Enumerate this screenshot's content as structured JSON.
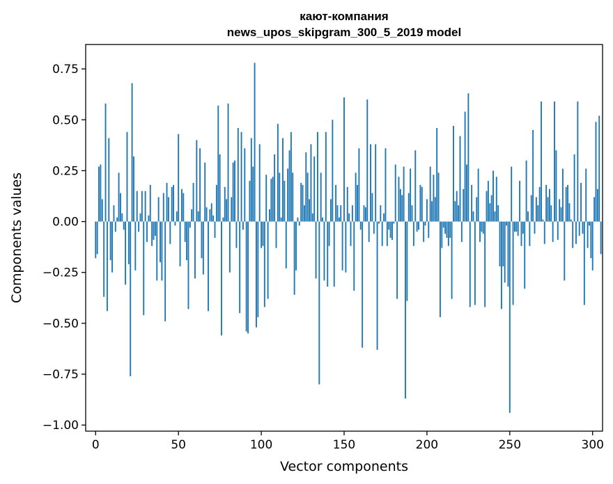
{
  "chart_data": {
    "type": "bar",
    "title": "кают-компания",
    "subtitle": "news_upos_skipgram_300_5_2019 model",
    "xlabel": "Vector components",
    "ylabel": "Components values",
    "xlim": [
      -6,
      306
    ],
    "ylim": [
      -1.03,
      0.87
    ],
    "xticks": [
      0,
      50,
      100,
      150,
      200,
      250,
      300
    ],
    "xtick_labels": [
      "0",
      "50",
      "100",
      "150",
      "200",
      "250",
      "300"
    ],
    "yticks": [
      -1.0,
      -0.75,
      -0.5,
      -0.25,
      0.0,
      0.25,
      0.5,
      0.75
    ],
    "ytick_labels": [
      "−1.00",
      "−0.75",
      "−0.50",
      "−0.25",
      "0.00",
      "0.25",
      "0.50",
      "0.75"
    ],
    "grid": false,
    "bar_color": "#1f77b4",
    "values": [
      -0.18,
      -0.16,
      0.27,
      0.28,
      0.11,
      -0.37,
      0.58,
      -0.44,
      0.41,
      -0.19,
      -0.25,
      0.08,
      -0.05,
      0.02,
      0.24,
      0.14,
      0.04,
      -0.04,
      -0.31,
      0.44,
      -0.21,
      -0.76,
      0.68,
      0.32,
      -0.24,
      0.15,
      -0.05,
      0.04,
      0.15,
      -0.46,
      0.15,
      -0.1,
      0.03,
      0.18,
      -0.12,
      -0.09,
      -0.07,
      -0.29,
      0.12,
      -0.2,
      -0.29,
      0.14,
      -0.49,
      0.19,
      0.12,
      -0.11,
      0.17,
      0.18,
      -0.02,
      0.05,
      0.43,
      -0.22,
      0.16,
      0.14,
      -0.1,
      -0.19,
      -0.43,
      -0.03,
      0.06,
      0.19,
      -0.28,
      0.4,
      0.05,
      0.36,
      -0.18,
      -0.26,
      0.29,
      0.07,
      -0.44,
      0.06,
      0.09,
      0.03,
      -0.08,
      0.18,
      0.57,
      0.33,
      -0.56,
      0.02,
      0.17,
      0.11,
      0.58,
      -0.25,
      0.12,
      0.29,
      0.3,
      -0.13,
      0.46,
      -0.45,
      0.44,
      -0.04,
      0.36,
      -0.54,
      -0.55,
      0.2,
      0.41,
      0.27,
      0.78,
      -0.52,
      -0.47,
      0.38,
      -0.13,
      -0.12,
      -0.42,
      0.23,
      -0.38,
      0.06,
      0.21,
      0.22,
      0.33,
      -0.13,
      0.48,
      0.24,
      0.02,
      0.41,
      0.2,
      -0.23,
      0.26,
      0.35,
      0.44,
      0.24,
      -0.36,
      -0.24,
      0.02,
      -0.02,
      0.19,
      0.18,
      0.08,
      0.34,
      0.24,
      0.11,
      0.38,
      0.04,
      0.32,
      -0.28,
      0.44,
      -0.8,
      0.24,
      0.02,
      -0.29,
      0.44,
      -0.32,
      -0.12,
      0.11,
      0.5,
      -0.32,
      0.18,
      0.08,
      0.02,
      0.08,
      -0.24,
      0.61,
      -0.25,
      0.17,
      0.04,
      -0.12,
      0.08,
      -0.34,
      0.24,
      0.18,
      0.36,
      -0.04,
      -0.62,
      0.08,
      0.07,
      0.6,
      -0.1,
      0.38,
      0.14,
      -0.06,
      0.38,
      -0.63,
      -0.01,
      0.08,
      -0.12,
      0.04,
      0.36,
      -0.12,
      -0.04,
      -0.08,
      -0.09,
      -0.01,
      0.28,
      -0.38,
      0.22,
      0.16,
      0.13,
      0.27,
      -0.87,
      -0.39,
      0.14,
      0.26,
      0.08,
      -0.12,
      0.35,
      -0.05,
      -0.04,
      0.18,
      0.17,
      -0.1,
      -0.02,
      0.11,
      -0.08,
      0.27,
      0.1,
      0.23,
      0.12,
      0.46,
      0.24,
      -0.47,
      -0.13,
      -0.03,
      -0.06,
      -0.08,
      -0.12,
      -0.08,
      -0.38,
      0.47,
      0.1,
      0.15,
      0.08,
      0.42,
      -0.1,
      0.16,
      0.54,
      0.28,
      0.63,
      -0.42,
      0.18,
      0.05,
      -0.41,
      0.12,
      0.26,
      -0.1,
      -0.05,
      -0.06,
      -0.42,
      0.15,
      0.2,
      0.09,
      0.13,
      0.25,
      0.05,
      0.22,
      0.08,
      -0.22,
      -0.43,
      -0.22,
      -0.3,
      -0.02,
      -0.32,
      -0.94,
      0.27,
      -0.41,
      -0.05,
      -0.05,
      -0.07,
      0.2,
      -0.12,
      -0.06,
      -0.33,
      0.3,
      0.05,
      -0.12,
      0.13,
      0.45,
      -0.06,
      0.12,
      0.08,
      0.17,
      0.59,
      0.01,
      -0.11,
      0.18,
      0.12,
      0.16,
      0.08,
      -0.1,
      0.59,
      0.35,
      -0.09,
      0.11,
      0.07,
      0.26,
      -0.29,
      0.17,
      0.18,
      0.09,
      0.01,
      -0.13,
      0.33,
      -0.11,
      0.59,
      -0.07,
      0.19,
      -0.06,
      -0.41,
      0.26,
      -0.13,
      -0.02,
      -0.18,
      -0.24,
      0.12,
      0.49,
      0.16,
      0.52,
      -0.16
    ]
  }
}
